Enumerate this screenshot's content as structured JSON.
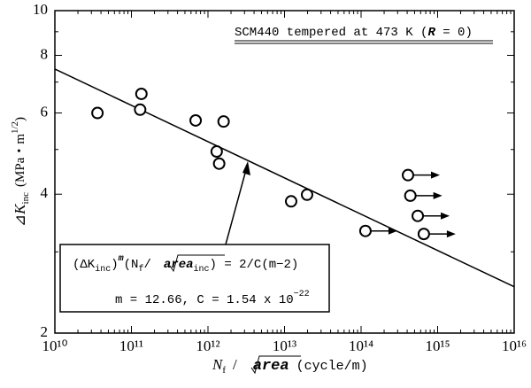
{
  "chart_data": {
    "type": "scatter",
    "xlabel": [
      "N",
      "f",
      "/",
      "area",
      "(cycle/m)"
    ],
    "ylabel": [
      "⊿",
      "K",
      "inc",
      "(MPa・m",
      "1/2",
      ")"
    ],
    "annotation": [
      "SCM440 tempered at 473 K (",
      "R",
      " = 0)"
    ],
    "equation": {
      "line1": [
        "(ΔK",
        "inc",
        ")",
        "m",
        "(N",
        "f",
        "/",
        "area",
        "inc",
        ") = 2/C(m−2)"
      ],
      "line2": [
        "m = 12.66, C = 1.54 x 10",
        "−22"
      ]
    },
    "log_x": true,
    "log_y": true,
    "xlim": [
      10000000000.0,
      1e+16
    ],
    "ylim": [
      2,
      10
    ],
    "xticks": [
      {
        "value": 10000000000.0,
        "label": "10¹⁰"
      },
      {
        "value": 100000000000.0,
        "label": "10¹¹"
      },
      {
        "value": 1000000000000.0,
        "label": "10¹²"
      },
      {
        "value": 10000000000000.0,
        "label": "10¹³"
      },
      {
        "value": 100000000000000.0,
        "label": "10¹⁴"
      },
      {
        "value": 1000000000000000.0,
        "label": "10¹⁵"
      },
      {
        "value": 1e+16,
        "label": "10¹⁶"
      }
    ],
    "yticks": [
      2,
      4,
      6,
      8,
      10
    ],
    "series": [
      {
        "color": "#000000",
        "x": [
          36000000000.0,
          130000000000.0,
          135000000000.0,
          690000000000.0,
          1600000000000.0,
          1300000000000.0,
          1400000000000.0,
          12200000000000.0,
          19700000000000.0,
          114000000000000.0,
          410000000000000.0,
          440000000000000.0,
          550000000000000.0,
          660000000000000.0
        ],
        "values": [
          6.0,
          6.1,
          6.6,
          5.78,
          5.75,
          4.95,
          4.66,
          3.86,
          3.99,
          3.33,
          4.4,
          3.97,
          3.59,
          3.28
        ],
        "runout": [
          false,
          false,
          false,
          false,
          false,
          false,
          false,
          false,
          false,
          true,
          true,
          true,
          true,
          true
        ]
      }
    ],
    "fit_line": {
      "x": [
        10000000000.0,
        1e+16
      ],
      "y": [
        7.47,
        2.52
      ]
    }
  }
}
